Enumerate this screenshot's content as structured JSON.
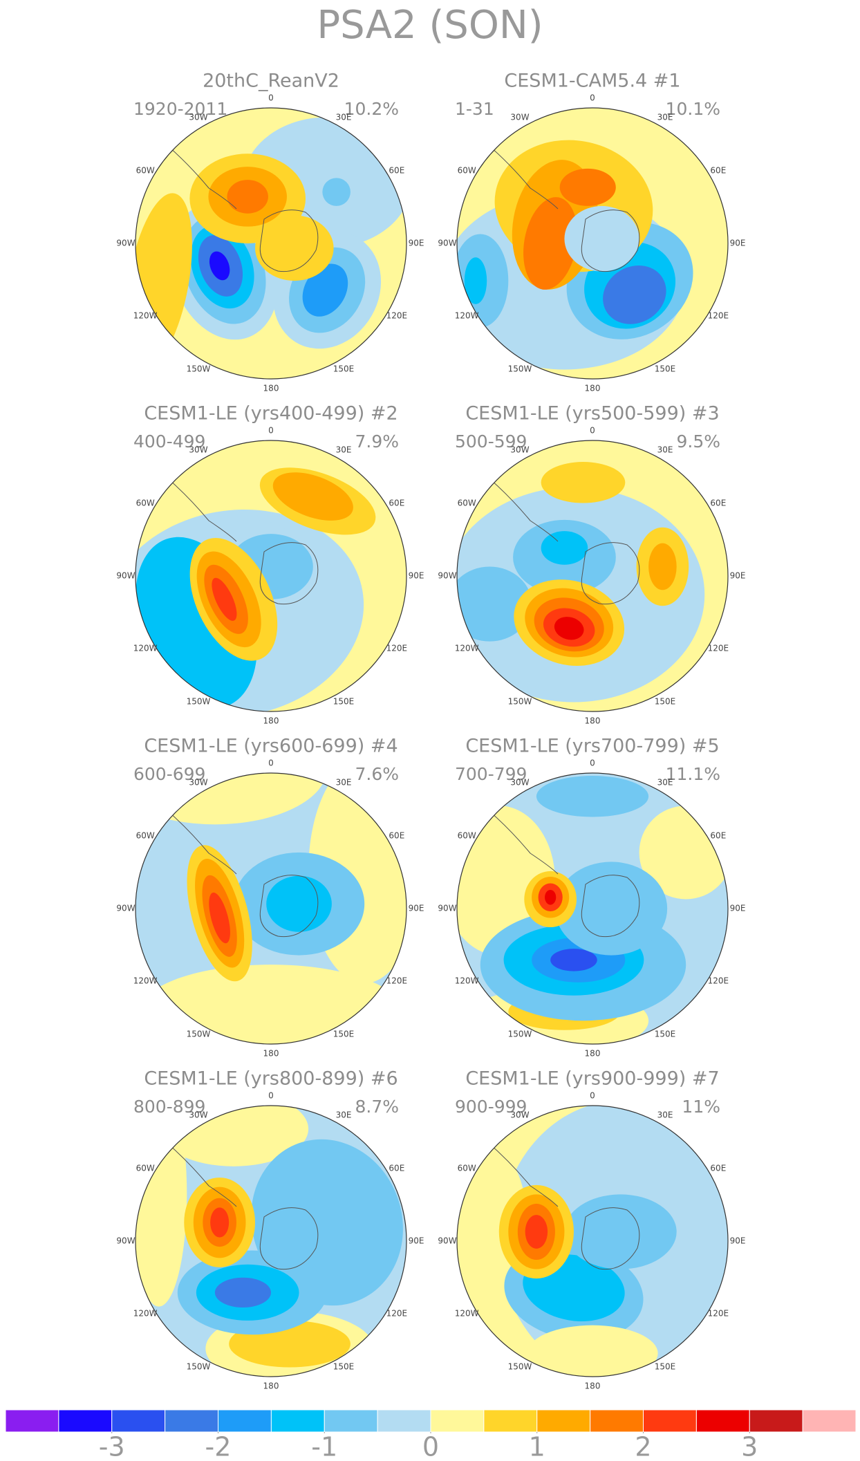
{
  "title": "PSA2 (SON)",
  "panels": [
    {
      "title": "20thC_ReanV2",
      "period": "1920-2011",
      "percent": "10.2%"
    },
    {
      "title": "CESM1-CAM5.4 #1",
      "period": "1-31",
      "percent": "10.1%"
    },
    {
      "title": "CESM1-LE (yrs400-499) #2",
      "period": "400-499",
      "percent": "7.9%"
    },
    {
      "title": "CESM1-LE (yrs500-599) #3",
      "period": "500-599",
      "percent": "9.5%"
    },
    {
      "title": "CESM1-LE (yrs600-699) #4",
      "period": "600-699",
      "percent": "7.6%"
    },
    {
      "title": "CESM1-LE (yrs700-799) #5",
      "period": "700-799",
      "percent": "11.1%"
    },
    {
      "title": "CESM1-LE (yrs800-899) #6",
      "period": "800-899",
      "percent": "8.7%"
    },
    {
      "title": "CESM1-LE (yrs900-999) #7",
      "period": "900-999",
      "percent": "11%"
    }
  ],
  "longitude_labels": [
    "0",
    "30E",
    "60E",
    "90E",
    "120E",
    "150E",
    "180",
    "150W",
    "120W",
    "90W",
    "60W",
    "30W"
  ],
  "colorbar": {
    "colors": [
      "#8a1ef0",
      "#1a0aff",
      "#2a50f0",
      "#3a7ae6",
      "#1e9cf8",
      "#00c2f8",
      "#72c8f2",
      "#b3dcf2",
      "#fff89a",
      "#ffd52a",
      "#ffaa00",
      "#ff7a00",
      "#ff3a10",
      "#ec0000",
      "#c81a1a",
      "#ffb4b4"
    ],
    "xlim": [
      -4,
      4
    ],
    "xticks": [
      -3,
      -2,
      -1,
      0,
      1,
      2,
      3
    ]
  }
}
